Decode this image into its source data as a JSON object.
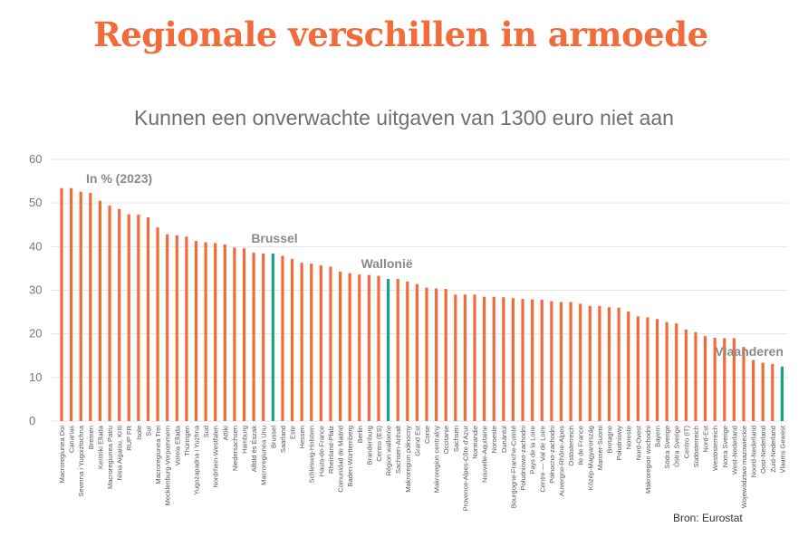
{
  "page": {
    "title": "Regionale verschillen in armoede",
    "source": "Bron: Eurostat"
  },
  "colors": {
    "bar": "#f26b3a",
    "highlight": "#14a38b",
    "grid": "#e6e6e6",
    "title": "#f26b3a"
  },
  "chart_data": {
    "type": "bar",
    "title": "Kunnen een onverwachte uitgaven van 1300 euro niet aan",
    "unit_label": "In % (2023)",
    "ylim": [
      0,
      60
    ],
    "yticks": [
      0,
      10,
      20,
      30,
      40,
      50,
      60
    ],
    "grid": true,
    "categories": [
      "Macroregiunea Doi",
      "Canarias",
      "Severna i Yugoiztochna",
      "Bremen",
      "Kentriki Ellada",
      "Macroregiunea Patru",
      "Nisia Aigaiou, Kriti",
      "RUP FR",
      "Isole",
      "Sur",
      "Macroregiunea Trei",
      "Mecklenburg-Vorpommern",
      "Voreia Ellada",
      "Thüringen",
      "Yugozapadna i Yuzhna",
      "Sud",
      "Nordrhein-Westfalen",
      "Attiki",
      "Niedersachsen",
      "Hamburg",
      "Alföld és Észak",
      "Macroregiunea Unu",
      "Brussel",
      "Saarland",
      "Este",
      "Hessen",
      "Schleswig-Holstein",
      "Hauts-de-France",
      "Rheinland-Pfalz",
      "Comunidad de Madrid",
      "Baden-Württemberg",
      "Berlin",
      "Brandenburg",
      "Centro (ES)",
      "Région wallonne",
      "Sachsen-Anhalt",
      "Makroregion północny",
      "Grand Est",
      "Corse",
      "Makroregion centralny",
      "Occitanie",
      "Sachsen",
      "Provence-Alpes-Côte d'Azur",
      "Normandie",
      "Nouvelle-Aquitaine",
      "Noroeste",
      "Dunántúl",
      "Bourgogne-Franche-Comté",
      "Południowo-zachodni",
      "Pays de la Loire",
      "Centre — Val de Loire",
      "Północno-zachodni",
      "Auvergne-Rhône-Alpes",
      "Ostösterreich",
      "Ile de France",
      "Közép-Magyarország",
      "Manner-Suomi",
      "Bretagne",
      "Południowy",
      "Noreste",
      "Nord-Ovest",
      "Makroregion wschodni",
      "Bayern",
      "Södra Sverige",
      "Östra Sverige",
      "Centro (IT)",
      "Südösterreich",
      "Nord-Est",
      "Westösterreich",
      "Norra Sverige",
      "West-Nederland",
      "Województwo mazowieckie",
      "Noord-Nederland",
      "Oost-Nederland",
      "Zuid-Nederland",
      "Vlaams Gewest"
    ],
    "values": [
      53.4,
      53.4,
      52.6,
      52.3,
      50.5,
      49.4,
      48.6,
      47.4,
      47.3,
      46.7,
      44.4,
      42.8,
      42.6,
      42.3,
      41.3,
      41.0,
      40.8,
      40.5,
      39.8,
      39.6,
      38.6,
      38.4,
      38.4,
      37.9,
      37.2,
      36.3,
      36.1,
      35.7,
      35.4,
      34.3,
      33.9,
      33.6,
      33.5,
      33.3,
      32.6,
      32.6,
      32.0,
      31.4,
      30.6,
      30.4,
      30.3,
      29.0,
      29.0,
      29.0,
      28.5,
      28.5,
      28.4,
      28.2,
      28.0,
      27.9,
      27.8,
      27.5,
      27.3,
      27.3,
      26.9,
      26.4,
      26.4,
      26.1,
      26.0,
      25.1,
      24.0,
      23.8,
      23.4,
      22.7,
      22.4,
      21.0,
      20.4,
      19.5,
      19.1,
      19.0,
      19.0,
      17.0,
      14.0,
      13.4,
      13.1,
      12.5
    ],
    "highlight": [
      "Brussel",
      "Région wallonne",
      "Vlaams Gewest"
    ],
    "annotations": [
      "Brussel",
      "Wallonië",
      "Vlaanderen"
    ]
  }
}
